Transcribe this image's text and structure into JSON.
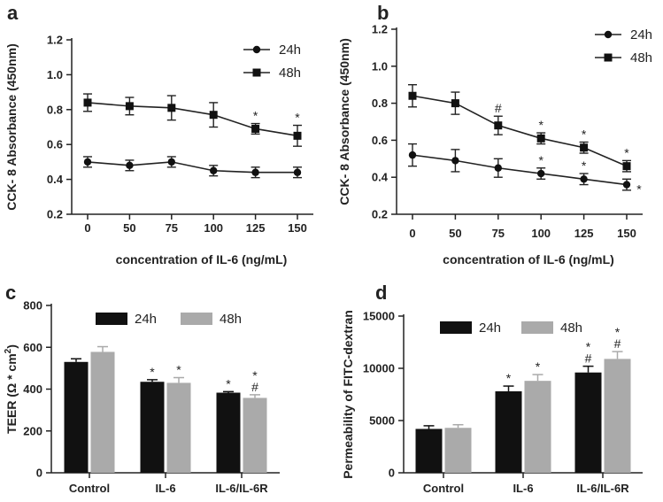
{
  "chart_data": [
    {
      "panel": "a",
      "type": "line",
      "xlabel": "concentration of IL-6 (ng/mL)",
      "ylabel": "CCK- 8 Absorbance (450nm)",
      "categories": [
        "0",
        "50",
        "75",
        "100",
        "125",
        "150"
      ],
      "ylim": [
        0.2,
        1.2
      ],
      "yticks": [
        "0.2",
        "0.4",
        "0.6",
        "0.8",
        "1.0",
        "1.2"
      ],
      "series": [
        {
          "name": "24h",
          "marker": "circle",
          "values": [
            0.5,
            0.48,
            0.5,
            0.45,
            0.44,
            0.44
          ],
          "errors": [
            0.03,
            0.03,
            0.03,
            0.03,
            0.03,
            0.03
          ],
          "annotations": [
            "",
            "",
            "",
            "",
            "",
            ""
          ]
        },
        {
          "name": "48h",
          "marker": "square",
          "values": [
            0.84,
            0.82,
            0.81,
            0.77,
            0.69,
            0.65
          ],
          "errors": [
            0.05,
            0.05,
            0.07,
            0.07,
            0.03,
            0.06
          ],
          "annotations": [
            "",
            "",
            "",
            "",
            "*",
            "*"
          ]
        }
      ]
    },
    {
      "panel": "b",
      "type": "line",
      "xlabel": "concentration of IL-6 (ng/mL)",
      "ylabel": "CCK- 8 Absorbance (450nm)",
      "categories": [
        "0",
        "50",
        "75",
        "100",
        "125",
        "150"
      ],
      "ylim": [
        0.2,
        1.2
      ],
      "yticks": [
        "0.2",
        "0.4",
        "0.6",
        "0.8",
        "1.0",
        "1.2"
      ],
      "series": [
        {
          "name": "24h",
          "marker": "circle",
          "values": [
            0.52,
            0.49,
            0.45,
            0.42,
            0.39,
            0.36
          ],
          "errors": [
            0.06,
            0.06,
            0.05,
            0.03,
            0.03,
            0.03
          ],
          "annotations": [
            "",
            "",
            "",
            "*",
            "*",
            "*"
          ]
        },
        {
          "name": "48h",
          "marker": "square",
          "values": [
            0.84,
            0.8,
            0.68,
            0.61,
            0.56,
            0.46
          ],
          "errors": [
            0.06,
            0.06,
            0.05,
            0.03,
            0.03,
            0.03
          ],
          "annotations": [
            "",
            "",
            "#",
            "*",
            "*",
            "*"
          ]
        }
      ]
    },
    {
      "panel": "c",
      "type": "bar",
      "ylabel": "TEER (Ω * cm²)",
      "categories": [
        "Control",
        "IL-6",
        "IL-6/IL-6R"
      ],
      "ylim": [
        0,
        800
      ],
      "yticks": [
        "0",
        "200",
        "400",
        "600",
        "800"
      ],
      "series": [
        {
          "name": "24h",
          "color": "#111111",
          "values": [
            530,
            435,
            383
          ],
          "errors": [
            15,
            10,
            5
          ],
          "annotations": [
            "",
            "*",
            "*"
          ]
        },
        {
          "name": "48h",
          "color": "#aaaaaa",
          "values": [
            578,
            430,
            358
          ],
          "errors": [
            25,
            25,
            15
          ],
          "annotations": [
            "",
            "*",
            "*\n#"
          ]
        }
      ]
    },
    {
      "panel": "d",
      "type": "bar",
      "ylabel": "Permeability of FITC-dextran",
      "categories": [
        "Control",
        "IL-6",
        "IL-6/IL-6R"
      ],
      "ylim": [
        0,
        15000
      ],
      "yticks": [
        "0",
        "5000",
        "10000",
        "15000"
      ],
      "series": [
        {
          "name": "24h",
          "color": "#111111",
          "values": [
            4200,
            7800,
            9600
          ],
          "errors": [
            300,
            500,
            600
          ],
          "annotations": [
            "",
            "*",
            "*\n#"
          ]
        },
        {
          "name": "48h",
          "color": "#aaaaaa",
          "values": [
            4300,
            8800,
            10900
          ],
          "errors": [
            300,
            600,
            700
          ],
          "annotations": [
            "",
            "*",
            "*\n#"
          ]
        }
      ]
    }
  ]
}
